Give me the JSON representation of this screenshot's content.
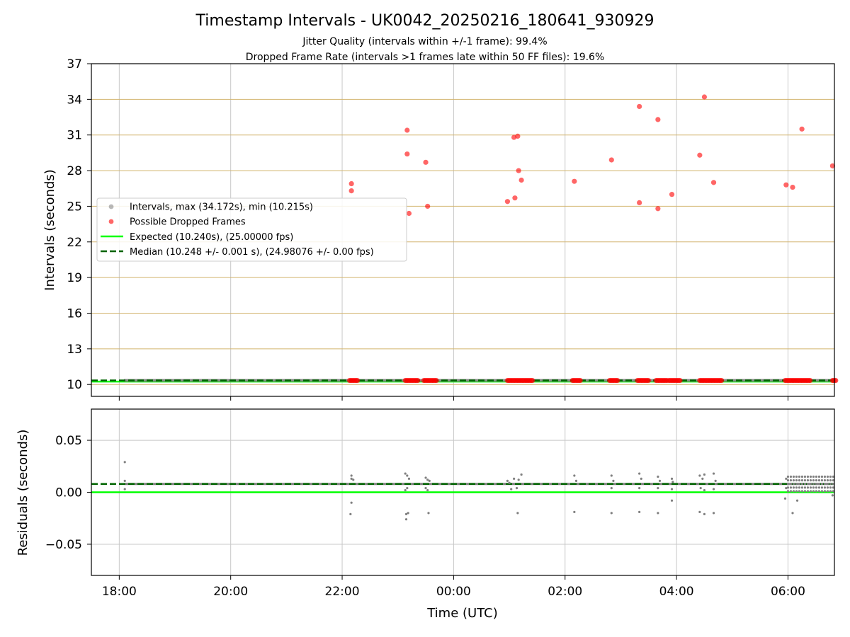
{
  "figure": {
    "title": "Timestamp Intervals - UK0042_20250216_180641_930929",
    "subtitle_1": "Jitter Quality (intervals within +/-1 frame): 99.4%",
    "subtitle_2": "Dropped Frame Rate (intervals >1 frames late within 50 FF files): 19.6%"
  },
  "colors": {
    "interval_points": "#808080",
    "dropped_points": "#ff0000",
    "expected_line": "#00ff00",
    "median_line": "#006400",
    "hgrid_top": "#d2b46e",
    "grid": "#c8c8c8"
  },
  "chart_data": [
    {
      "type": "scatter",
      "ylabel": "Intervals (seconds)",
      "xlim": [
        "17:30",
        "06:50"
      ],
      "ylim": [
        9,
        37
      ],
      "yticks": [
        10,
        13,
        16,
        19,
        22,
        25,
        28,
        31,
        34,
        37
      ],
      "xticks": [
        "18:00",
        "20:00",
        "22:00",
        "00:00",
        "02:00",
        "04:00",
        "06:00"
      ],
      "legend_position": "center-left",
      "legend": [
        "Intervals, max (34.172s), min (10.215s)",
        "Possible Dropped Frames",
        "Expected (10.240s), (25.00000 fps)",
        "Median (10.248 +/- 0.001 s), (24.98076 +/- 0.00 fps)"
      ],
      "expected_interval": 10.24,
      "median_interval": 10.248,
      "interval_baseline": {
        "x_start": "18:05",
        "x_end": "06:50",
        "y": 10.248
      },
      "dropped_outliers": [
        {
          "x": "22:10",
          "y": 26.9
        },
        {
          "x": "22:10",
          "y": 26.3
        },
        {
          "x": "23:10",
          "y": 31.4
        },
        {
          "x": "23:10",
          "y": 29.4
        },
        {
          "x": "23:12",
          "y": 24.4
        },
        {
          "x": "23:30",
          "y": 28.7
        },
        {
          "x": "23:32",
          "y": 25.0
        },
        {
          "x": "00:58",
          "y": 25.4
        },
        {
          "x": "01:05",
          "y": 30.8
        },
        {
          "x": "01:09",
          "y": 30.9
        },
        {
          "x": "01:06",
          "y": 25.7
        },
        {
          "x": "01:10",
          "y": 28.0
        },
        {
          "x": "01:13",
          "y": 27.2
        },
        {
          "x": "02:10",
          "y": 27.1
        },
        {
          "x": "02:50",
          "y": 28.9
        },
        {
          "x": "03:20",
          "y": 33.4
        },
        {
          "x": "03:20",
          "y": 25.3
        },
        {
          "x": "03:40",
          "y": 32.3
        },
        {
          "x": "03:40",
          "y": 24.8
        },
        {
          "x": "03:55",
          "y": 26.0
        },
        {
          "x": "04:25",
          "y": 29.3
        },
        {
          "x": "04:30",
          "y": 34.2
        },
        {
          "x": "04:40",
          "y": 27.0
        },
        {
          "x": "05:58",
          "y": 26.8
        },
        {
          "x": "06:05",
          "y": 26.6
        },
        {
          "x": "06:15",
          "y": 31.5
        },
        {
          "x": "06:48",
          "y": 28.4
        }
      ],
      "dropped_clusters": [
        {
          "x_start": "22:08",
          "x_end": "22:18",
          "y": 10.248
        },
        {
          "x_start": "23:08",
          "x_end": "23:22",
          "y": 10.248
        },
        {
          "x_start": "23:28",
          "x_end": "23:42",
          "y": 10.248
        },
        {
          "x_start": "00:58",
          "x_end": "01:26",
          "y": 10.248
        },
        {
          "x_start": "02:08",
          "x_end": "02:18",
          "y": 10.248
        },
        {
          "x_start": "02:48",
          "x_end": "02:58",
          "y": 10.248
        },
        {
          "x_start": "03:18",
          "x_end": "03:30",
          "y": 10.248
        },
        {
          "x_start": "03:38",
          "x_end": "03:50",
          "y": 10.248
        },
        {
          "x_start": "03:52",
          "x_end": "04:04",
          "y": 10.248
        },
        {
          "x_start": "04:25",
          "x_end": "04:50",
          "y": 10.248
        },
        {
          "x_start": "05:57",
          "x_end": "06:25",
          "y": 10.248
        },
        {
          "x_start": "06:48",
          "x_end": "06:52",
          "y": 10.248
        }
      ]
    },
    {
      "type": "scatter",
      "ylabel": "Residuals (seconds)",
      "xlabel": "Time (UTC)",
      "xlim": [
        "17:30",
        "06:50"
      ],
      "ylim": [
        -0.08,
        0.08
      ],
      "yticks": [
        0.05,
        0.0,
        -0.05
      ],
      "ytick_labels": [
        "0.05",
        "0.00",
        "−0.05"
      ],
      "xticks": [
        "18:00",
        "20:00",
        "22:00",
        "00:00",
        "02:00",
        "04:00",
        "06:00"
      ],
      "expected_residual": 0.0,
      "median_residual": 0.008,
      "residual_points": [
        {
          "x": "18:06",
          "y": 0.029
        },
        {
          "x": "18:06",
          "y": 0.011
        },
        {
          "x": "18:06",
          "y": 0.003
        },
        {
          "x": "22:10",
          "y": 0.016
        },
        {
          "x": "22:10",
          "y": 0.013
        },
        {
          "x": "22:12",
          "y": 0.012
        },
        {
          "x": "22:10",
          "y": -0.01
        },
        {
          "x": "22:09",
          "y": -0.021
        },
        {
          "x": "23:08",
          "y": 0.018
        },
        {
          "x": "23:10",
          "y": 0.016
        },
        {
          "x": "23:12",
          "y": 0.013
        },
        {
          "x": "23:10",
          "y": 0.004
        },
        {
          "x": "23:08",
          "y": 0.002
        },
        {
          "x": "23:09",
          "y": -0.021
        },
        {
          "x": "23:11",
          "y": -0.02
        },
        {
          "x": "23:09",
          "y": -0.026
        },
        {
          "x": "23:30",
          "y": 0.014
        },
        {
          "x": "23:32",
          "y": 0.012
        },
        {
          "x": "23:34",
          "y": 0.011
        },
        {
          "x": "23:30",
          "y": 0.004
        },
        {
          "x": "23:32",
          "y": 0.002
        },
        {
          "x": "23:33",
          "y": -0.02
        },
        {
          "x": "00:58",
          "y": 0.011
        },
        {
          "x": "01:00",
          "y": 0.009
        },
        {
          "x": "01:05",
          "y": 0.013
        },
        {
          "x": "01:10",
          "y": 0.012
        },
        {
          "x": "01:13",
          "y": 0.017
        },
        {
          "x": "01:08",
          "y": 0.004
        },
        {
          "x": "01:02",
          "y": 0.003
        },
        {
          "x": "01:09",
          "y": -0.02
        },
        {
          "x": "02:10",
          "y": 0.016
        },
        {
          "x": "02:12",
          "y": 0.011
        },
        {
          "x": "02:10",
          "y": -0.019
        },
        {
          "x": "02:50",
          "y": 0.016
        },
        {
          "x": "02:52",
          "y": 0.011
        },
        {
          "x": "02:50",
          "y": 0.004
        },
        {
          "x": "02:50",
          "y": -0.02
        },
        {
          "x": "03:20",
          "y": 0.018
        },
        {
          "x": "03:22",
          "y": 0.013
        },
        {
          "x": "03:20",
          "y": 0.004
        },
        {
          "x": "03:20",
          "y": -0.019
        },
        {
          "x": "03:40",
          "y": 0.015
        },
        {
          "x": "03:42",
          "y": 0.011
        },
        {
          "x": "03:40",
          "y": 0.004
        },
        {
          "x": "03:40",
          "y": -0.02
        },
        {
          "x": "03:55",
          "y": 0.013
        },
        {
          "x": "03:56",
          "y": 0.01
        },
        {
          "x": "03:55",
          "y": 0.003
        },
        {
          "x": "03:55",
          "y": -0.008
        },
        {
          "x": "04:25",
          "y": 0.016
        },
        {
          "x": "04:30",
          "y": 0.017
        },
        {
          "x": "04:28",
          "y": 0.013
        },
        {
          "x": "04:26",
          "y": 0.004
        },
        {
          "x": "04:30",
          "y": 0.002
        },
        {
          "x": "04:25",
          "y": -0.019
        },
        {
          "x": "04:30",
          "y": -0.021
        },
        {
          "x": "04:40",
          "y": 0.018
        },
        {
          "x": "04:42",
          "y": 0.011
        },
        {
          "x": "04:40",
          "y": 0.003
        },
        {
          "x": "04:40",
          "y": -0.02
        },
        {
          "x": "05:58",
          "y": 0.013
        },
        {
          "x": "05:58",
          "y": 0.004
        },
        {
          "x": "05:57",
          "y": -0.006
        },
        {
          "x": "06:05",
          "y": -0.02
        },
        {
          "x": "06:10",
          "y": -0.008
        },
        {
          "x": "06:48",
          "y": -0.003
        }
      ],
      "residual_dense_band": {
        "x_start": "06:00",
        "x_end": "06:50",
        "y_min": 0.001,
        "y_max": 0.018
      }
    }
  ]
}
